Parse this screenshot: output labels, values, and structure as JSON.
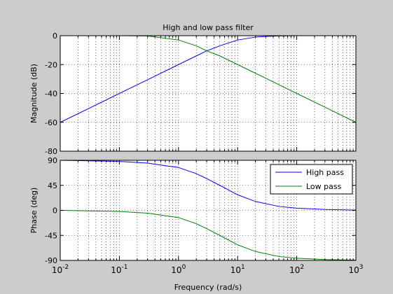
{
  "chart_data": [
    {
      "type": "line",
      "title": "High and low pass filter",
      "xlabel": "",
      "ylabel": "Magnitude (dB)",
      "xscale": "log",
      "xlim": [
        0.01,
        1000
      ],
      "ylim": [
        -80,
        0
      ],
      "yticks": [
        0,
        -20,
        -40,
        -60,
        -80
      ],
      "grid": true,
      "series": [
        {
          "name": "High pass",
          "color": "#0000ff",
          "x": [
            0.01,
            0.03,
            0.1,
            0.3,
            1,
            2,
            3,
            5,
            10,
            20,
            30,
            40,
            50,
            100,
            1000
          ],
          "y": [
            -60,
            -50.5,
            -40,
            -30.5,
            -20,
            -14,
            -10.5,
            -7,
            -3,
            -1,
            -0.5,
            -0.3,
            -0.2,
            0,
            0
          ]
        },
        {
          "name": "Low pass",
          "color": "#008000",
          "x": [
            0.01,
            0.1,
            0.3,
            1,
            2,
            3,
            5,
            10,
            20,
            30,
            100,
            300,
            1000
          ],
          "y": [
            0,
            0,
            -0.2,
            -3,
            -7,
            -10.5,
            -14,
            -20,
            -26,
            -29.5,
            -40,
            -49.5,
            -60
          ]
        }
      ]
    },
    {
      "type": "line",
      "xlabel": "Frequency  (rad/s)",
      "ylabel": "Phase (deg)",
      "xscale": "log",
      "xlim": [
        0.01,
        1000
      ],
      "ylim": [
        -90,
        90
      ],
      "yticks": [
        90,
        45,
        0,
        -45,
        -90
      ],
      "xticks": [
        "10^-2",
        "10^-1",
        "10^0",
        "10^1",
        "10^2",
        "10^3"
      ],
      "grid": true,
      "legend": "top-right",
      "series": [
        {
          "name": "High pass",
          "color": "#0000ff",
          "x": [
            0.01,
            0.1,
            0.3,
            1,
            2,
            3,
            5,
            10,
            20,
            50,
            100,
            300,
            1000
          ],
          "y": [
            90,
            88,
            85,
            77,
            66,
            57,
            45,
            28,
            16,
            7,
            4,
            1.5,
            0.5
          ]
        },
        {
          "name": "Low pass",
          "color": "#008000",
          "x": [
            0.01,
            0.1,
            0.3,
            1,
            2,
            3,
            5,
            10,
            20,
            50,
            100,
            300,
            1000
          ],
          "y": [
            0,
            -2,
            -5,
            -13,
            -24,
            -33,
            -45,
            -62,
            -74,
            -83,
            -86,
            -88.5,
            -89.5
          ]
        }
      ]
    }
  ]
}
